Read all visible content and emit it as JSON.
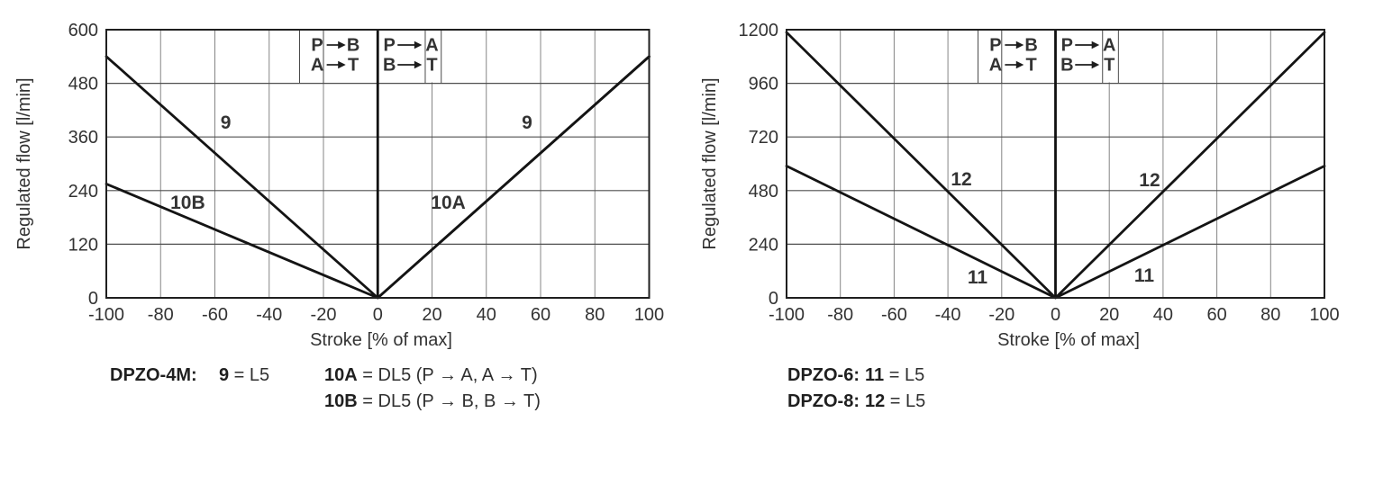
{
  "colors": {
    "background": "#ffffff",
    "curve": "#141414",
    "grid_vertical": "#858585",
    "grid_horizontal": "#4f4f4f",
    "plot_border": "#1f1f1f",
    "zero_axis": "#101010",
    "legend_divider": "#4a4a4a",
    "text": "#333333"
  },
  "chart_data": [
    {
      "type": "line",
      "title": "DPZO-4M regulated flow vs stroke",
      "xlabel": "Stroke [% of max]",
      "ylabel": "Regulated flow [l/min]",
      "xlim": [
        -100,
        100
      ],
      "ylim": [
        0,
        600
      ],
      "x_ticks": [
        -100,
        -80,
        -60,
        -40,
        -20,
        0,
        20,
        40,
        60,
        80,
        100
      ],
      "y_ticks": [
        0,
        120,
        240,
        360,
        480,
        600
      ],
      "grid": true,
      "series": [
        {
          "name": "9",
          "x": [
            -100,
            0,
            100
          ],
          "y": [
            540,
            0,
            540
          ]
        },
        {
          "name": "10A",
          "x": [
            0,
            100
          ],
          "y": [
            0,
            540
          ]
        },
        {
          "name": "10B",
          "x": [
            -100,
            0
          ],
          "y": [
            255,
            0
          ]
        }
      ],
      "annotations": [
        {
          "text": "9",
          "x": -56,
          "y": 395
        },
        {
          "text": "10B",
          "x": -70,
          "y": 215
        },
        {
          "text": "10A",
          "x": 26,
          "y": 215
        },
        {
          "text": "9",
          "x": 55,
          "y": 395
        }
      ],
      "legend_cells": [
        {
          "rows": [
            [
              "P",
              "B"
            ],
            [
              "A",
              "T"
            ]
          ]
        },
        {
          "rows": [
            [
              "P",
              "A"
            ],
            [
              "B",
              "T"
            ]
          ]
        }
      ]
    },
    {
      "type": "line",
      "title": "DPZO-6 / DPZO-8 regulated flow vs stroke",
      "xlabel": "Stroke [% of max]",
      "ylabel": "Regulated flow [l/min]",
      "xlim": [
        -100,
        100
      ],
      "ylim": [
        0,
        1200
      ],
      "x_ticks": [
        -100,
        -80,
        -60,
        -40,
        -20,
        0,
        20,
        40,
        60,
        80,
        100
      ],
      "y_ticks": [
        0,
        240,
        480,
        720,
        960,
        1200
      ],
      "grid": true,
      "series": [
        {
          "name": "12",
          "x": [
            -100,
            0,
            100
          ],
          "y": [
            1188,
            0,
            1188
          ]
        },
        {
          "name": "11",
          "x": [
            -100,
            0,
            100
          ],
          "y": [
            590,
            0,
            590
          ]
        }
      ],
      "annotations": [
        {
          "text": "12",
          "x": -35,
          "y": 536
        },
        {
          "text": "12",
          "x": 35,
          "y": 532
        },
        {
          "text": "11",
          "x": -29,
          "y": 97
        },
        {
          "text": "11",
          "x": 33,
          "y": 105
        }
      ],
      "legend_cells": [
        {
          "rows": [
            [
              "P",
              "B"
            ],
            [
              "A",
              "T"
            ]
          ]
        },
        {
          "rows": [
            [
              "P",
              "A"
            ],
            [
              "B",
              "T"
            ]
          ]
        }
      ]
    }
  ],
  "captions": {
    "left": {
      "model": "DPZO-4M:",
      "entry1_code": "9",
      "entry1_text": " = L5",
      "entry2_code": "10A",
      "entry2_text": " = DL5 (P → A, A → T)",
      "entry3_code": "10B",
      "entry3_text": " = DL5 (P → B, B → T)"
    },
    "right": {
      "model1": "DPZO-6:",
      "entry1_code": "11",
      "entry1_text": " = L5",
      "model2": "DPZO-8:",
      "entry2_code": "12",
      "entry2_text": " = L5"
    }
  }
}
